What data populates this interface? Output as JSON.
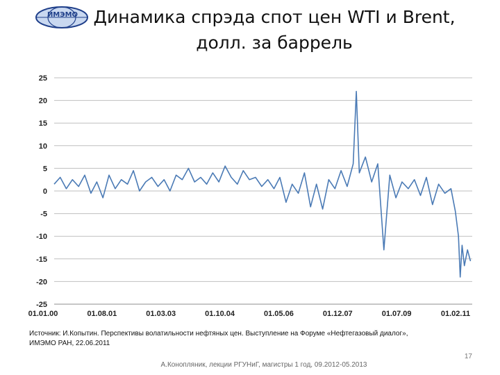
{
  "slide": {
    "logo_text": "ИМЭМО",
    "title_line1": "Динамика спрэда спот цен WTI и Brent,",
    "title_line2": "долл. за баррель",
    "source_line1": "Источник: И.Копытин. Перспективы волатильности нефтяных цен. Выступление на Форуме «Нефтегазовый диалог»,",
    "source_line2": "ИМЭМО РАН, 22.06.2011",
    "page_number": "17",
    "footer": "А.Конопляник, лекции РГУНиГ, магистры 1 год, 09.2012-05.2013",
    "colors": {
      "series": "#4a7ab5",
      "logo": "#1f3f8a"
    }
  },
  "chart_data": {
    "type": "line",
    "title": "Динамика спрэда спот цен WTI и Brent, долл. за баррель",
    "xlabel": "",
    "ylabel": "",
    "ylim": [
      -25,
      25
    ],
    "yticks": [
      25,
      20,
      15,
      10,
      5,
      0,
      -5,
      -10,
      -15,
      -20,
      -25
    ],
    "xticks": [
      "01.01.00",
      "01.08.01",
      "01.03.03",
      "01.10.04",
      "01.05.06",
      "01.12.07",
      "01.07.09",
      "01.02.11"
    ],
    "xlim": [
      "2000-01-01",
      "2011-06-01"
    ],
    "grid": "horizontal",
    "legend": "none",
    "series": [
      {
        "points": [
          [
            "2000-01-01",
            1.5
          ],
          [
            "2000-03-01",
            3.0
          ],
          [
            "2000-05-01",
            0.5
          ],
          [
            "2000-07-01",
            2.5
          ],
          [
            "2000-09-01",
            1.0
          ],
          [
            "2000-11-01",
            3.5
          ],
          [
            "2001-01-01",
            -0.5
          ],
          [
            "2001-03-01",
            2.0
          ],
          [
            "2001-05-01",
            -1.5
          ],
          [
            "2001-07-01",
            3.5
          ],
          [
            "2001-09-01",
            0.5
          ],
          [
            "2001-11-01",
            2.5
          ],
          [
            "2002-01-01",
            1.5
          ],
          [
            "2002-03-01",
            4.5
          ],
          [
            "2002-05-01",
            0.0
          ],
          [
            "2002-07-01",
            2.0
          ],
          [
            "2002-09-01",
            3.0
          ],
          [
            "2002-11-01",
            1.0
          ],
          [
            "2003-01-01",
            2.5
          ],
          [
            "2003-03-01",
            0.0
          ],
          [
            "2003-05-01",
            3.5
          ],
          [
            "2003-07-01",
            2.5
          ],
          [
            "2003-09-01",
            5.0
          ],
          [
            "2003-11-01",
            2.0
          ],
          [
            "2004-01-01",
            3.0
          ],
          [
            "2004-03-01",
            1.5
          ],
          [
            "2004-05-01",
            4.0
          ],
          [
            "2004-07-01",
            2.0
          ],
          [
            "2004-09-01",
            5.5
          ],
          [
            "2004-11-01",
            3.0
          ],
          [
            "2005-01-01",
            1.5
          ],
          [
            "2005-03-01",
            4.5
          ],
          [
            "2005-05-01",
            2.5
          ],
          [
            "2005-07-01",
            3.0
          ],
          [
            "2005-09-01",
            1.0
          ],
          [
            "2005-11-01",
            2.5
          ],
          [
            "2006-01-01",
            0.5
          ],
          [
            "2006-03-01",
            3.0
          ],
          [
            "2006-05-01",
            -2.5
          ],
          [
            "2006-07-01",
            1.5
          ],
          [
            "2006-09-01",
            -0.5
          ],
          [
            "2006-11-01",
            4.0
          ],
          [
            "2007-01-01",
            -3.5
          ],
          [
            "2007-03-01",
            1.5
          ],
          [
            "2007-05-01",
            -4.0
          ],
          [
            "2007-07-01",
            2.5
          ],
          [
            "2007-09-01",
            0.5
          ],
          [
            "2007-11-01",
            4.5
          ],
          [
            "2008-01-01",
            1.0
          ],
          [
            "2008-03-01",
            6.0
          ],
          [
            "2008-04-01",
            22.0
          ],
          [
            "2008-05-01",
            4.0
          ],
          [
            "2008-07-01",
            7.5
          ],
          [
            "2008-09-01",
            2.0
          ],
          [
            "2008-11-01",
            6.0
          ],
          [
            "2009-01-01",
            -13.0
          ],
          [
            "2009-03-01",
            3.5
          ],
          [
            "2009-05-01",
            -1.5
          ],
          [
            "2009-07-01",
            2.0
          ],
          [
            "2009-09-01",
            0.5
          ],
          [
            "2009-11-01",
            2.5
          ],
          [
            "2010-01-01",
            -1.0
          ],
          [
            "2010-03-01",
            3.0
          ],
          [
            "2010-05-01",
            -3.0
          ],
          [
            "2010-07-01",
            1.5
          ],
          [
            "2010-09-01",
            -0.5
          ],
          [
            "2010-11-01",
            0.5
          ],
          [
            "2010-12-15",
            -4.5
          ],
          [
            "2011-01-15",
            -10.0
          ],
          [
            "2011-02-01",
            -19.0
          ],
          [
            "2011-02-20",
            -12.0
          ],
          [
            "2011-03-15",
            -16.5
          ],
          [
            "2011-04-15",
            -13.0
          ],
          [
            "2011-05-15",
            -15.5
          ]
        ]
      }
    ]
  }
}
